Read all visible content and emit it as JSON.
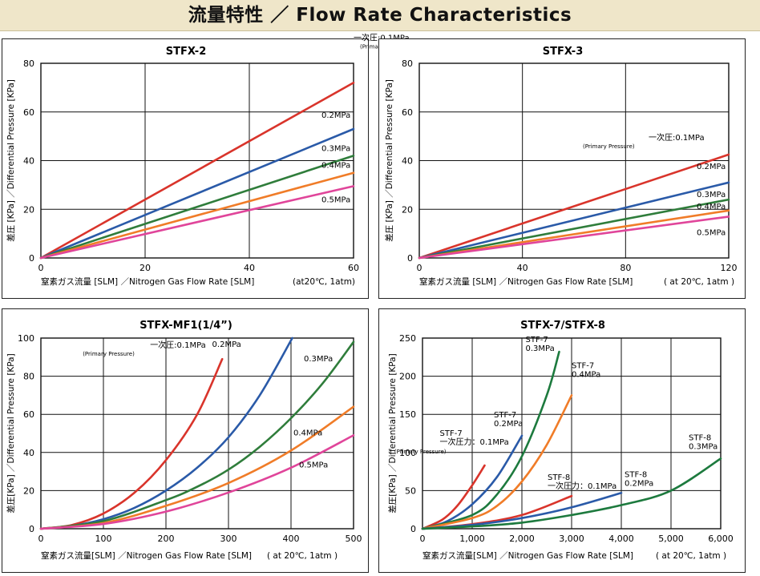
{
  "banner": {
    "title": "流量特性 ／ Flow Rate Characteristics"
  },
  "chart_data": [
    {
      "type": "line",
      "title": "STFX-2",
      "xlabel": "窒素ガス流量 [SLM] ／Nitrogen Gas Flow Rate [SLM]",
      "xnote": "(at20℃, 1atm)",
      "ylabel": "差圧 [KPa] ／Differential Pressure [KPa]",
      "xlim": [
        0,
        60
      ],
      "ylim": [
        0,
        80
      ],
      "xticks": [
        "0",
        "20",
        "40",
        "60"
      ],
      "yticks": [
        "0",
        "20",
        "40",
        "60",
        "80"
      ],
      "series": [
        {
          "name": "一次圧:0.1MPa",
          "sub": "(Primary Pressure)",
          "color": "#d9342b",
          "x": [
            0,
            60
          ],
          "y": [
            0,
            72
          ]
        },
        {
          "name": "0.2MPa",
          "color": "#2a5aa8",
          "x": [
            0,
            60
          ],
          "y": [
            0,
            53
          ]
        },
        {
          "name": "0.3MPa",
          "color": "#2f7d3b",
          "x": [
            0,
            60
          ],
          "y": [
            0,
            42
          ]
        },
        {
          "name": "0.4MPa",
          "color": "#f07c28",
          "x": [
            0,
            60
          ],
          "y": [
            0,
            35
          ]
        },
        {
          "name": "0.5MPa",
          "color": "#e0459a",
          "x": [
            0,
            60
          ],
          "y": [
            0,
            29.5
          ]
        }
      ]
    },
    {
      "type": "line",
      "title": "STFX-3",
      "xlabel": "窒素ガス流量 [SLM] ／Nitrogen Gas Flow Rate [SLM]",
      "xnote": "( at 20℃, 1atm )",
      "ylabel": "差圧 [KPa] ／Differential Pressure [KPa]",
      "xlim": [
        0,
        120
      ],
      "ylim": [
        0,
        80
      ],
      "xticks": [
        "0",
        "40",
        "80",
        "120"
      ],
      "yticks": [
        "0",
        "20",
        "40",
        "60",
        "80"
      ],
      "series": [
        {
          "name": "一次圧:0.1MPa",
          "sub": "(Primary Pressure)",
          "color": "#d9342b",
          "x": [
            0,
            120
          ],
          "y": [
            0,
            42.5
          ]
        },
        {
          "name": "0.2MPa",
          "color": "#2a5aa8",
          "x": [
            0,
            120
          ],
          "y": [
            0,
            31
          ]
        },
        {
          "name": "0.3MPa",
          "color": "#2f7d3b",
          "x": [
            0,
            120
          ],
          "y": [
            0,
            24
          ]
        },
        {
          "name": "0.4MPa",
          "color": "#f07c28",
          "x": [
            0,
            120
          ],
          "y": [
            0,
            19.5
          ]
        },
        {
          "name": "0.5MPa",
          "color": "#e0459a",
          "x": [
            0,
            120
          ],
          "y": [
            0,
            17
          ]
        }
      ]
    },
    {
      "type": "line",
      "title": "STFX-MF1(1/4”)",
      "xlabel": "窒素ガス流量[SLM] ／Nitrogen Gas Flow Rate [SLM]",
      "xnote": "( at 20℃, 1atm )",
      "ylabel": "差圧[KPa] ／Differential Pressure [KPa]",
      "xlim": [
        0,
        500
      ],
      "ylim": [
        0,
        100
      ],
      "xticks": [
        "0",
        "100",
        "200",
        "300",
        "400",
        "500"
      ],
      "yticks": [
        "0",
        "20",
        "40",
        "60",
        "80",
        "100"
      ],
      "series": [
        {
          "name": "一次圧:0.1MPa",
          "sub": "(Primary Pressure)",
          "color": "#d9342b",
          "x": [
            0,
            50,
            100,
            150,
            200,
            250,
            290
          ],
          "y": [
            0,
            2,
            8,
            19,
            36,
            60,
            89
          ]
        },
        {
          "name": "0.2MPa",
          "color": "#2a5aa8",
          "x": [
            0,
            50,
            100,
            150,
            200,
            250,
            300,
            350,
            402
          ],
          "y": [
            0,
            1.5,
            5,
            11,
            20,
            32,
            48,
            70,
            100
          ]
        },
        {
          "name": "0.3MPa",
          "color": "#2f7d3b",
          "x": [
            0,
            100,
            200,
            250,
            300,
            350,
            400,
            450,
            500
          ],
          "y": [
            0,
            4,
            15,
            22,
            31,
            43,
            58,
            76,
            98
          ]
        },
        {
          "name": "0.4MPa",
          "color": "#f07c28",
          "x": [
            0,
            100,
            200,
            300,
            400,
            500
          ],
          "y": [
            0,
            3,
            12,
            24,
            41,
            64
          ]
        },
        {
          "name": "0.5MPa",
          "color": "#e0459a",
          "x": [
            0,
            100,
            200,
            300,
            400,
            500
          ],
          "y": [
            0,
            2.5,
            9,
            19,
            32,
            49
          ]
        }
      ]
    },
    {
      "type": "line",
      "title": "STFX-7/STFX-8",
      "xlabel": "窒素ガス流量[SLM] ／Nitrogen Gas Flow Rate [SLM]",
      "xnote": "( at 20℃, 1atm )",
      "ylabel": "差圧[KPa] ／Differential Pressure [KPa]",
      "xlim": [
        0,
        6000
      ],
      "ylim": [
        0,
        250
      ],
      "xticks": [
        "0",
        "1,000",
        "2,000",
        "3,000",
        "4,000",
        "5,000",
        "6,000"
      ],
      "yticks": [
        "0",
        "50",
        "100",
        "150",
        "200",
        "250"
      ],
      "series": [
        {
          "name": "STF-7 一次圧力：0.1MPa",
          "sub": "(Primary Pressure)",
          "color": "#d9342b",
          "x": [
            0,
            400,
            700,
            1000,
            1250
          ],
          "y": [
            0,
            12,
            30,
            57,
            83
          ]
        },
        {
          "name": "STF-7 0.2MPa",
          "color": "#2a5aa8",
          "x": [
            0,
            500,
            1000,
            1500,
            2000
          ],
          "y": [
            0,
            10,
            32,
            68,
            122
          ]
        },
        {
          "name": "STF-7 0.3MPa",
          "color": "#1d7a3e",
          "x": [
            0,
            1000,
            1500,
            2000,
            2500,
            2750
          ],
          "y": [
            0,
            18,
            45,
            95,
            175,
            232
          ]
        },
        {
          "name": "STF-7 0.4MPa",
          "color": "#f07c28",
          "x": [
            0,
            1000,
            1500,
            2000,
            2500,
            3000
          ],
          "y": [
            0,
            14,
            30,
            62,
            110,
            175
          ]
        },
        {
          "name": "STF-8 一次圧力：0.1MPa",
          "color": "#d9342b",
          "x": [
            0,
            1000,
            2000,
            3000
          ],
          "y": [
            0,
            6,
            18,
            43
          ]
        },
        {
          "name": "STF-8 0.2MPa",
          "color": "#2a5aa8",
          "x": [
            0,
            1000,
            2000,
            3000,
            4000
          ],
          "y": [
            0,
            5,
            14,
            28,
            47
          ]
        },
        {
          "name": "STF-8 0.3MPa",
          "color": "#1d7a3e",
          "x": [
            0,
            1000,
            2000,
            3000,
            4000,
            5000,
            6000
          ],
          "y": [
            0,
            3,
            8,
            18,
            31,
            50,
            92
          ]
        }
      ]
    }
  ]
}
